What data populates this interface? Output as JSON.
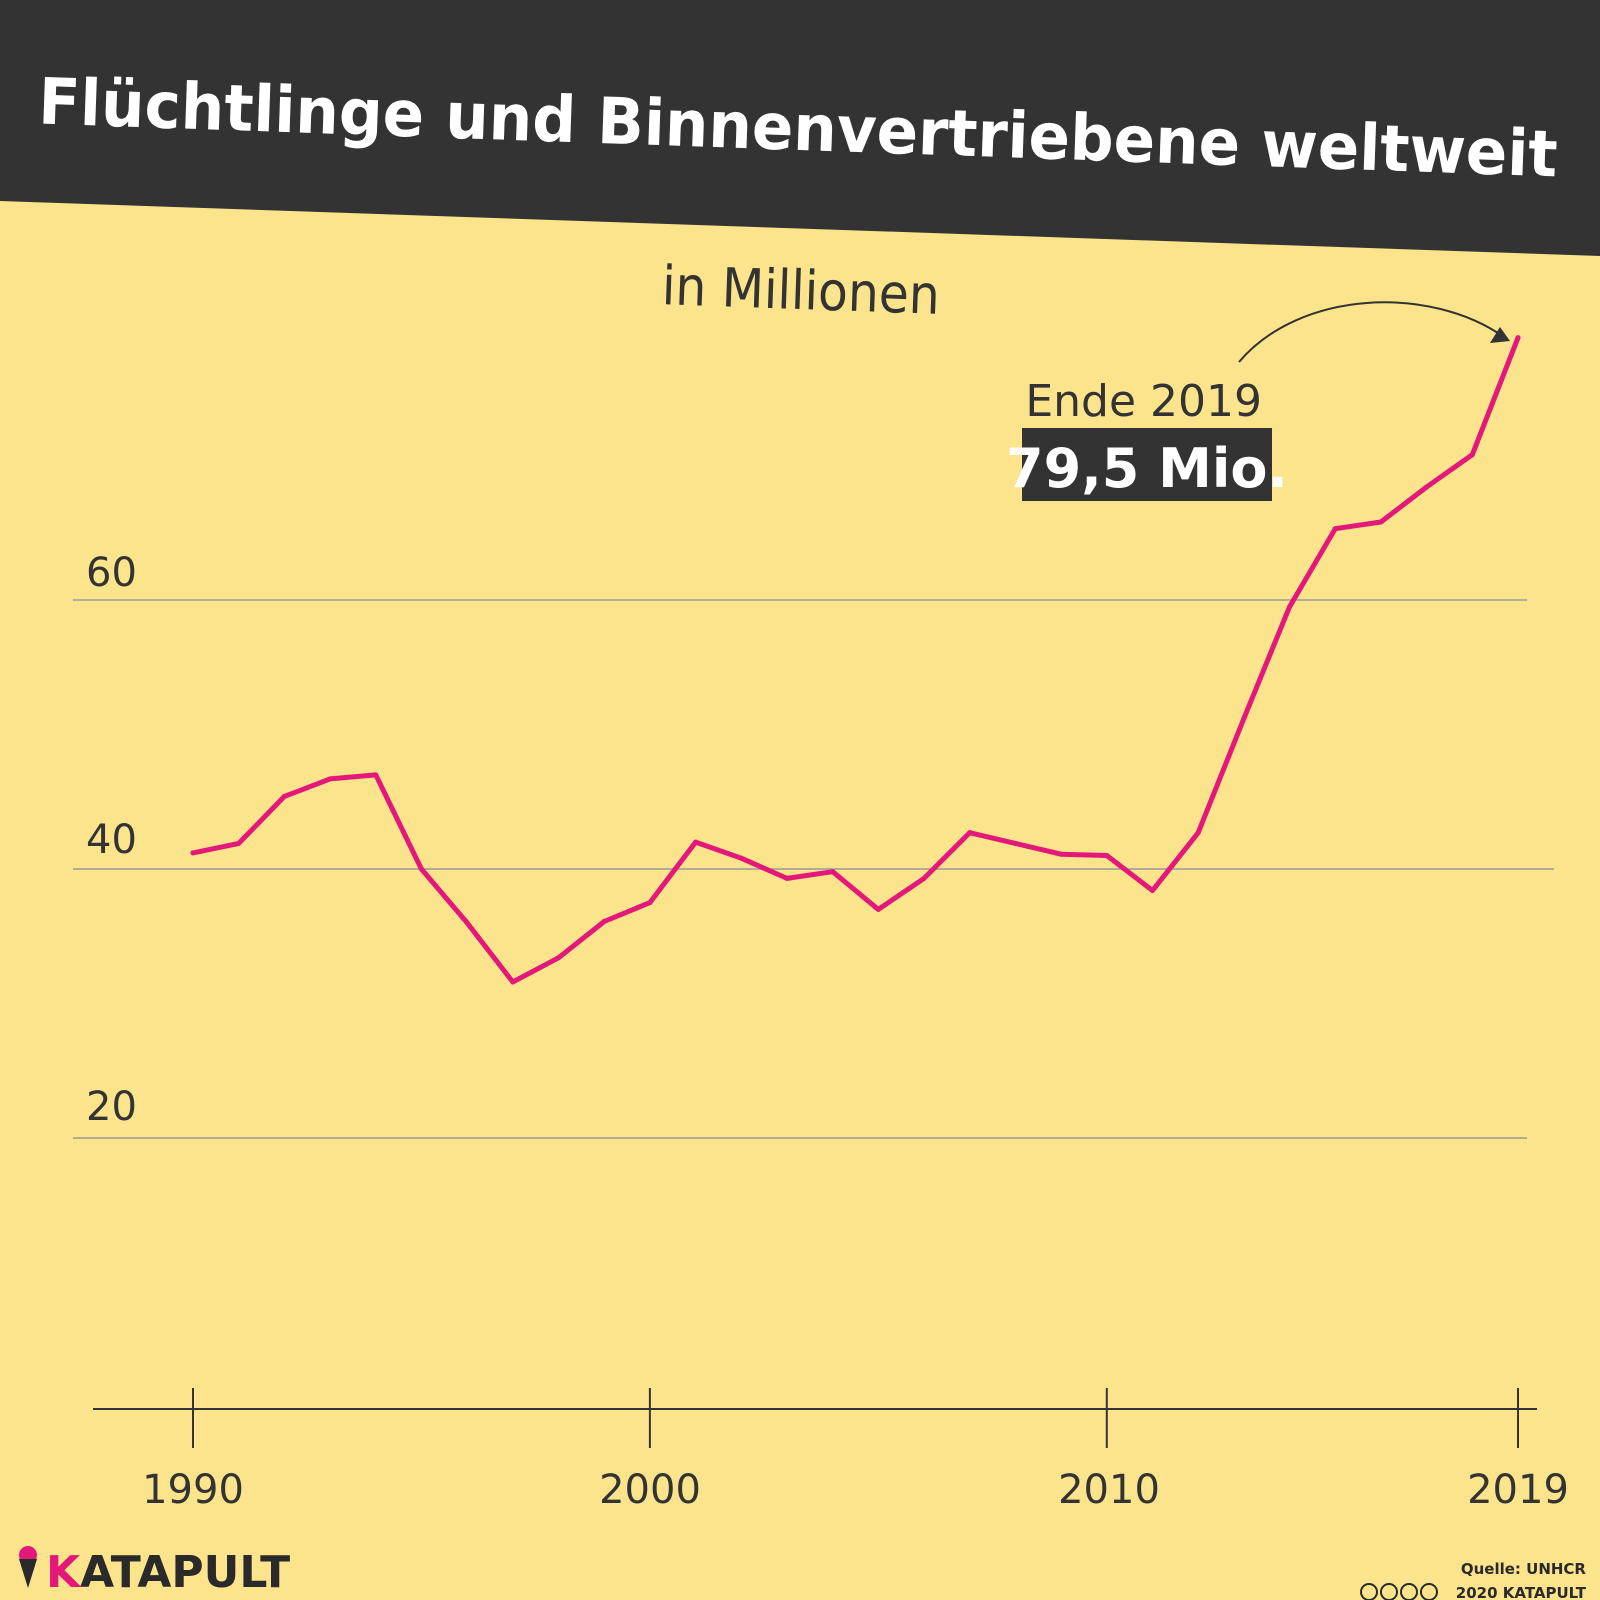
{
  "header": {
    "title": "Flüchtlinge und Binnenvertriebene weltweit"
  },
  "brand": {
    "name": "KATAPULT",
    "accent_letter": "K",
    "rest": "ATAPULT"
  },
  "footer": {
    "source": "Quelle: UNHCR",
    "copyright": "2020 KATAPULT"
  },
  "annotation": {
    "label": "Ende 2019",
    "value": "79,5 Mio."
  },
  "colors": {
    "background": "#fbe48b",
    "header": "#333333",
    "line": "#e3187a",
    "text": "#333333",
    "grid": "#9a9a9a"
  },
  "chart_data": {
    "type": "line",
    "title": "Flüchtlinge und Binnenvertriebene weltweit",
    "subtitle": "in Millionen",
    "xlabel": "",
    "ylabel": "",
    "x": [
      1990,
      1991,
      1992,
      1993,
      1994,
      1995,
      1996,
      1997,
      1998,
      1999,
      2000,
      2001,
      2002,
      2003,
      2004,
      2005,
      2006,
      2007,
      2008,
      2009,
      2010,
      2011,
      2012,
      2013,
      2014,
      2015,
      2016,
      2017,
      2018,
      2019
    ],
    "series": [
      {
        "values": [
          41.2,
          41.9,
          45.4,
          46.7,
          47.0,
          40.0,
          36.0,
          31.6,
          33.4,
          36.1,
          37.5,
          42.0,
          40.8,
          39.3,
          39.8,
          37.0,
          39.3,
          42.7,
          41.9,
          41.1,
          41.0,
          38.4,
          42.7,
          51.2,
          59.5,
          65.3,
          65.8,
          68.4,
          70.8,
          79.5
        ]
      }
    ],
    "x_ticks": [
      "1990",
      "2000",
      "2010",
      "2019"
    ],
    "y_ticks": [
      "20",
      "40",
      "60"
    ],
    "ylim": [
      0,
      80
    ],
    "grid": true,
    "legend": "none"
  }
}
